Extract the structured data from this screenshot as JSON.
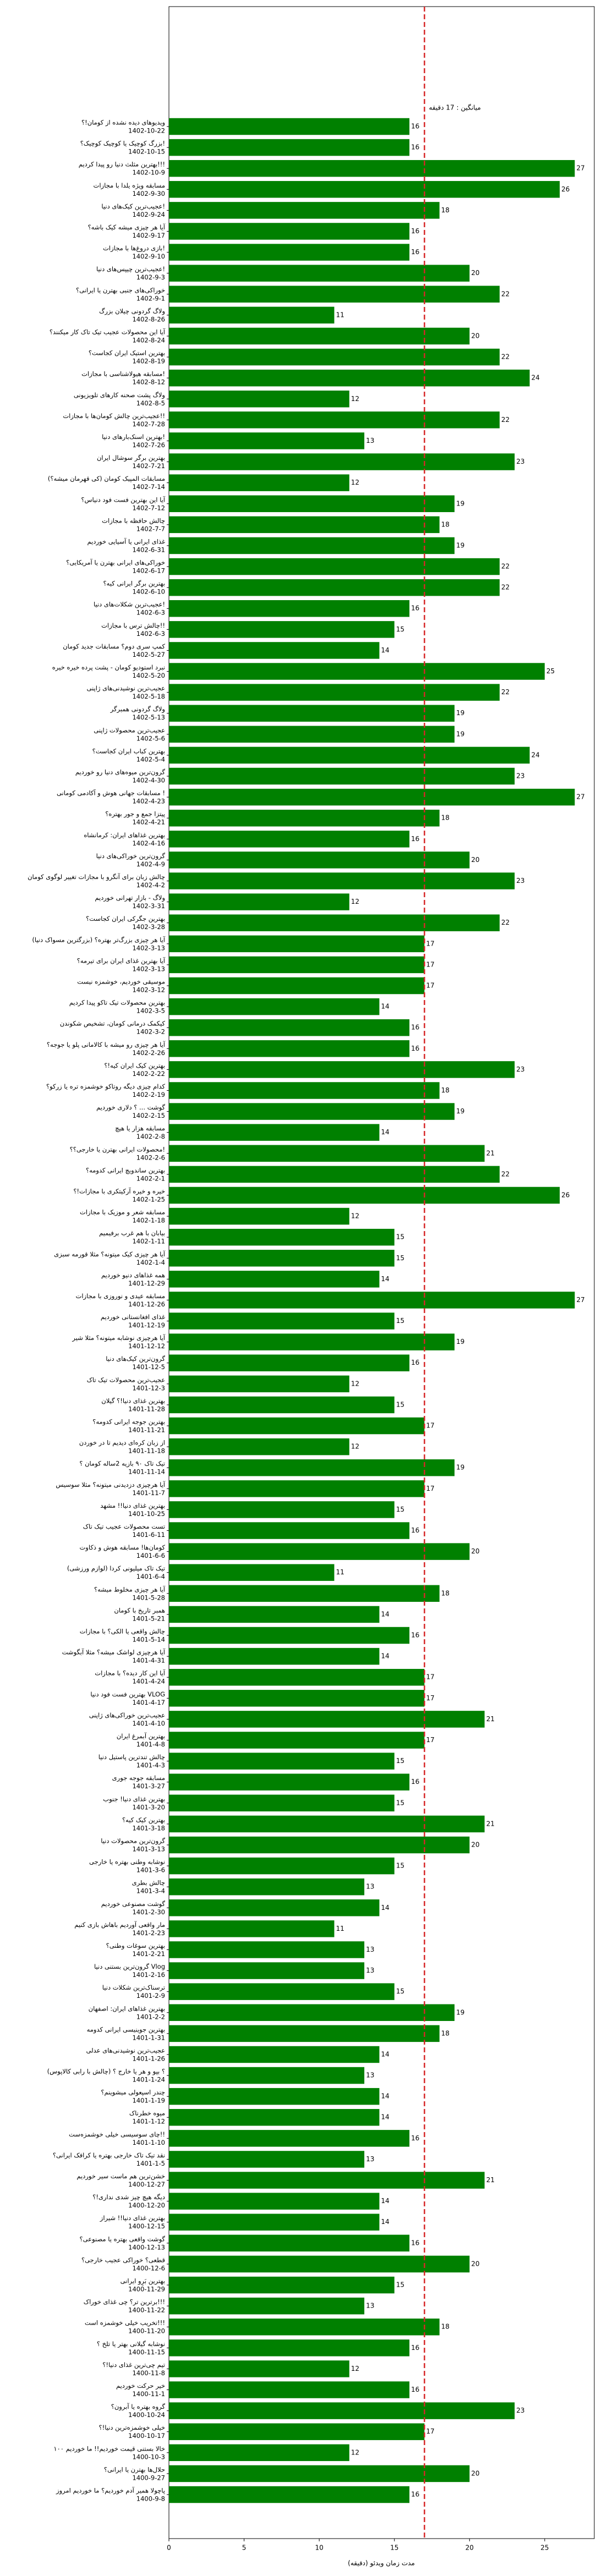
{
  "chart_data": {
    "type": "barh",
    "xlabel": "مدت زمان ویدئو (دقیقه)",
    "mean": 17,
    "mean_label": "میانگین : 17 دقیقه",
    "mean_color": "#d62728",
    "color": "#008000",
    "xlim": [
      0,
      28.3
    ],
    "xticks": [
      0,
      5,
      10,
      15,
      20,
      25
    ],
    "categories": [
      "ویدیوهای دیده نشده از کومان!؟",
      "بزرگ کوچیک یا کوچیک کوچیک؟!",
      "بهترین مثلث دنیا رو پیدا کردیم!!!",
      "مسابقه ویژه یلدا با مجازات",
      "عجیب‌ترین کیک‌های دنیا!",
      "آیا هر چیزی میشه کیک باشه؟",
      "بازی دروغ‌ها با مجازات!",
      "عجیب‌ترین چیپس‌های دنیا!",
      "خوراکی‌های جنبی بهترن یا ایرانی؟",
      "ولاگ گردونی چیلان بزرگ",
      "آیا این محصولات عجیب تیک تاک کار میکنند؟",
      "بهترین استیک ایران کجاست؟",
      "مسابقه هیولاشناسی با مجازات!",
      "ولاگ پشت صحنه کارهای تلویزیونی",
      "عجیب‌ترین چالش کومان‌ها با مجازات!!",
      "بهترین اسنک‌بارهای دنیا!",
      "بهترین برگر سوشال ایران",
      "مسابقات المپیک کومان (کی قهرمان میشه؟)",
      "آیا این بهترین فست فود دنیاس؟",
      "چالش حافظه با مجازات",
      "غذای ایرانی یا آسیایی خوردیم",
      "خوراکی‌های ایرانی بهترن یا آمریکایی؟",
      "بهترین برگر ایرانی کیه؟",
      "عجیب‌ترین شکلات‌های دنیا!",
      "چالش ترس با مجازات!!",
      "کمپ سری دوم؟ مسابقات جدید کومان",
      "نبرد استودیو کومان - پشت پرده خیره خیره",
      "عجیب‌ترین نوشیدنی‌های ژاپنی",
      "ولاگ گردونی همبرگر",
      "عجیب‌ترین محصولات ژاپنی",
      "بهترین کباب ایران کجاست؟",
      "گرون‌ترین میوه‌های دنیا رو خوردیم",
      "مسابقات جهانی هوش و آکادمی کومانی !",
      "پیتزا جمع و جور بهتره؟",
      "بهترین غذاهای ایران: کرمانشاه",
      "گرون‌ترین خوراکی‌های دنیا",
      "چالش زبان برای آنگرو با مجازات تغییر لوگوی کومان",
      "ولاگ - بازار تهرانی خوردیم",
      "بهترین جگرکی ایران کجاست؟",
      "آیا هر چیزی بزرگ‌تر بهتره؟ (بزرگترین مسواک دنیا)",
      "آیا بهترین غذای ایران برای تیرمه؟",
      "موسیقی خوردیم، خوشمزه نیست",
      "بهترین محصولات تیک تاکو پیدا کردیم",
      "کیکمک درمانی کومان، تشخیص شکوندن",
      "آیا هر چیزی رو میشه با کالامانی پلو یا جوجه؟",
      "بهترین کیک ایران کیه!؟",
      "کدام چیزی دیگه روتاکو خوشمزه تره یا زرکو؟",
      "گوشت ... ؟ دلاری خوردیم",
      "مسابقه هزار یا هیچ",
      "محصولات ایرانی بهترن یا خارجی؟؟!",
      "بهترین ساندویچ ایرانی کدومه؟",
      "خیره و خیره آرکیتکری با مجازات!؟",
      "مسابقه شعر و موزیک با مجازات",
      "بیابان با هم غرب برفیمیم",
      "آیا هر چیزی کیک میتونه؟ مثلا قورمه سبزی",
      "همه غذاهای دنیو خوردیم",
      "مسابقه عیدی و نوروزی با مجازات",
      "غذای افغانستانی خوردیم",
      "آیا هرچیزی نوشابه میتونه؟ مثلا شیر",
      "گرون‌ترین کیک‌های دنیا",
      "عجیب‌ترین محصولات تیک تاک",
      "بهترین غذای دنیا!؟ گیلان",
      "بهترین جوجه ایرانی کدومه؟",
      "از زبان کره‌ای دیدیم تا در خوردن",
      "تیک تاک ۹۰ بازیه 2ساله کومان ؟",
      "آیا هرچیزی دزدیدنی میتونه؟ مثلا سوسیس",
      "بهترین غذای دنیا!! مشهد",
      "تست محصولات عجیب تیک تاک",
      "کومان‌ها! مسابقه هوش و ذکاوت",
      "تیک تاک میلیونی کردا (لوازم ورزشی)",
      "آیا هر چیزی مخلوط میشه؟",
      "همبر تاریخ با کومان",
      "چالش واقعی یا الکی؟ با مجازات",
      "آیا هرچیزی لواشک میشه؟ مثلا آبگوشت",
      "آیا این کار دیده؟ با مجازات",
      "بهترین فست فود دنیا VLOG",
      "عجیب‌ترین خوراکی‌های ژاپنی",
      "بهترین آبمرغ ایران",
      "چالش تندترین پاستیل دنیا",
      "مسابقه جوجه جوری",
      "بهترین غذای دنیا! جنوب",
      "بهترین کیک کیه؟",
      "گرون‌ترین محصولات دنیا",
      "نوشابه وطنی بهتره یا خارجی",
      "چالش بطری",
      "گوشت مصنوعی خوردیم",
      "مار واقعی آوردیم باهاش بازی کنیم",
      "بهترین سوغات وطنی؟",
      "گرون‌ترین بستنی دنیا Vlog",
      "ترسناک‌ترین شکلات دنیا",
      "بهترین غذاهای ایران: اصفهان",
      "بهترین جوینیسی ایرانی کدومه",
      "عجیب‌ترین نوشیدنی‌های عدلی",
      "؟ بپو و هر یا خارج ؟ (چالش با رابی کالاپوس)",
      "چندر اسپعولی میشوینم؟",
      "میوه خطرناک",
      "چای سوسیسی خیلی خوشمزه‌ست!!",
      "نقد تیک تاک خارجی بهتره یا کرافک ایرانی؟",
      "خشن‌ترین هم ماست سیر خوردیم",
      "دیگه هیچ چیز شدی نداری!؟",
      "بهترین غذای دنیا!! شیراز",
      "گوشت واقعی بهتره یا مصنوعی؟",
      "قطعی؟ خوراکی عجیب خارجی؟",
      "بهترین بَرِو ایرانی",
      "برترین تر؟ چی غذای خوراک!!!",
      "تخریب خیلی خوشمزه است!!!",
      "نوشابه گیلانی بهتر یا تلخ ؟",
      "تیم چی‌ترین غذای دنیا!؟",
      "خیر حرکت خوردیم",
      "گروه بهتره یا آبرون؟",
      "خیلی خوشمزه‌ترین دنیا!؟",
      "۱۰۰ خالا بستنی قیمت خوردیم!! ما خوردیم",
      "حلال‌ها بهترن یا ایرانی؟",
      "پاچولا همیر آدم خوردیم؟ ما خوردیم امروز"
    ],
    "dates": [
      "1402-10-22",
      "1402-10-15",
      "1402-10-9",
      "1402-9-30",
      "1402-9-24",
      "1402-9-17",
      "1402-9-10",
      "1402-9-3",
      "1402-9-1",
      "1402-8-26",
      "1402-8-24",
      "1402-8-19",
      "1402-8-12",
      "1402-8-5",
      "1402-7-28",
      "1402-7-26",
      "1402-7-21",
      "1402-7-14",
      "1402-7-12",
      "1402-7-7",
      "1402-6-31",
      "1402-6-17",
      "1402-6-10",
      "1402-6-3",
      "1402-6-3",
      "1402-5-27",
      "1402-5-20",
      "1402-5-18",
      "1402-5-13",
      "1402-5-6",
      "1402-5-4",
      "1402-4-30",
      "1402-4-23",
      "1402-4-21",
      "1402-4-16",
      "1402-4-9",
      "1402-4-2",
      "1402-3-31",
      "1402-3-28",
      "1402-3-13",
      "1402-3-13",
      "1402-3-12",
      "1402-3-5",
      "1402-3-2",
      "1402-2-26",
      "1402-2-22",
      "1402-2-19",
      "1402-2-15",
      "1402-2-8",
      "1402-2-6",
      "1402-2-1",
      "1402-1-25",
      "1402-1-18",
      "1402-1-11",
      "1402-1-4",
      "1401-12-29",
      "1401-12-26",
      "1401-12-19",
      "1401-12-12",
      "1401-12-5",
      "1401-12-3",
      "1401-11-28",
      "1401-11-21",
      "1401-11-18",
      "1401-11-14",
      "1401-11-7",
      "1401-10-25",
      "1401-6-11",
      "1401-6-6",
      "1401-6-4",
      "1401-5-28",
      "1401-5-21",
      "1401-5-14",
      "1401-4-31",
      "1401-4-24",
      "1401-4-17",
      "1401-4-10",
      "1401-4-8",
      "1401-4-3",
      "1401-3-27",
      "1401-3-20",
      "1401-3-18",
      "1401-3-13",
      "1401-3-6",
      "1401-3-4",
      "1401-2-30",
      "1401-2-23",
      "1401-2-21",
      "1401-2-16",
      "1401-2-9",
      "1401-2-2",
      "1401-1-31",
      "1401-1-26",
      "1401-1-24",
      "1401-1-19",
      "1401-1-12",
      "1401-1-10",
      "1401-1-5",
      "1400-12-27",
      "1400-12-20",
      "1400-12-15",
      "1400-12-13",
      "1400-12-6",
      "1400-11-29",
      "1400-11-22",
      "1400-11-20",
      "1400-11-15",
      "1400-11-8",
      "1400-11-1",
      "1400-10-24",
      "1400-10-17",
      "1400-10-3",
      "1400-9-27",
      "1400-9-8"
    ],
    "values": [
      16,
      16,
      27,
      26,
      18,
      16,
      16,
      20,
      22,
      11,
      20,
      22,
      24,
      12,
      22,
      13,
      23,
      12,
      19,
      18,
      19,
      22,
      22,
      16,
      15,
      14,
      25,
      22,
      19,
      19,
      24,
      23,
      27,
      18,
      16,
      20,
      23,
      12,
      22,
      17,
      17,
      17,
      14,
      16,
      16,
      23,
      18,
      19,
      14,
      21,
      22,
      26,
      12,
      15,
      15,
      14,
      27,
      15,
      19,
      16,
      12,
      15,
      17,
      12,
      19,
      17,
      15,
      16,
      20,
      11,
      18,
      14,
      16,
      14,
      17,
      17,
      21,
      17,
      15,
      16,
      15,
      21,
      20,
      15,
      13,
      14,
      11,
      13,
      13,
      15,
      19,
      18,
      14,
      13,
      14,
      14,
      16,
      13,
      21,
      14,
      14,
      16,
      20,
      15,
      13,
      18,
      16,
      12,
      16,
      23,
      17,
      12,
      20,
      16
    ]
  }
}
